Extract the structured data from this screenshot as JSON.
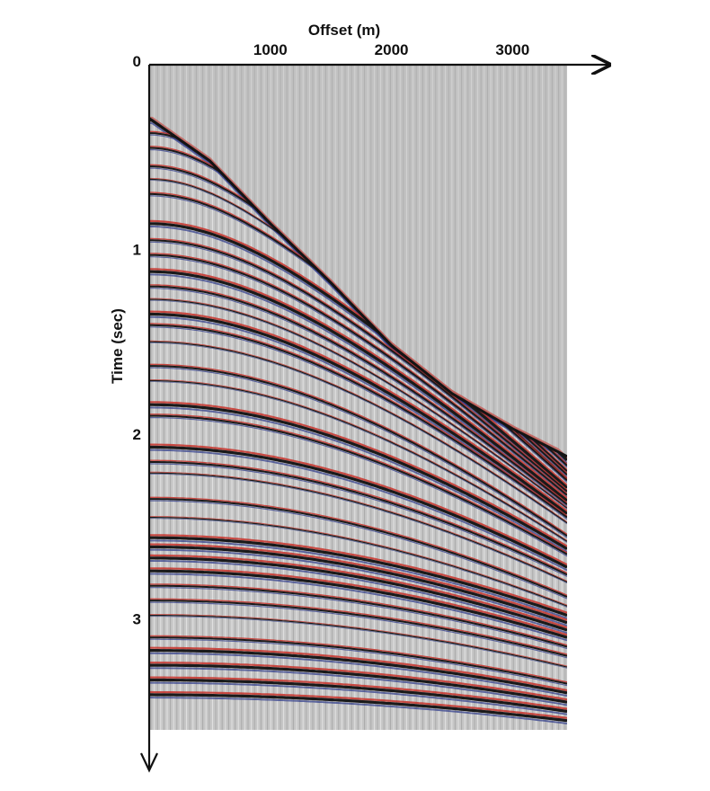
{
  "chart_data": {
    "type": "other",
    "subtype": "seismic-shot-gather",
    "xlabel": "Offset (m)",
    "ylabel": "Time (sec)",
    "x_ticks": [
      1000,
      2000,
      3000
    ],
    "y_ticks": [
      0,
      1,
      2,
      3
    ],
    "x_range": [
      0,
      3450
    ],
    "y_range": [
      0,
      3.6
    ],
    "y_axis_direction": "down",
    "x_axis_position": "top",
    "colors": {
      "background_trace": "#c6c6c6",
      "peak": "#1a1a1a",
      "positive": "#c8322a",
      "negative": "#34408c"
    },
    "first_break": [
      {
        "offset": 0,
        "time": 0.29
      },
      {
        "offset": 500,
        "time": 0.52
      },
      {
        "offset": 1000,
        "time": 0.86
      },
      {
        "offset": 1500,
        "time": 1.18
      },
      {
        "offset": 2000,
        "time": 1.52
      },
      {
        "offset": 2500,
        "time": 1.78
      },
      {
        "offset": 3000,
        "time": 1.97
      },
      {
        "offset": 3450,
        "time": 2.12
      }
    ],
    "reflections": [
      {
        "t0": 0.3,
        "t_far": 2.14,
        "strength": "strong"
      },
      {
        "t0": 0.37,
        "t_far": 2.17,
        "strength": "medium"
      },
      {
        "t0": 0.45,
        "t_far": 2.2,
        "strength": "medium"
      },
      {
        "t0": 0.55,
        "t_far": 2.22,
        "strength": "medium"
      },
      {
        "t0": 0.62,
        "t_far": 2.24,
        "strength": "weak"
      },
      {
        "t0": 0.7,
        "t_far": 2.25,
        "strength": "medium"
      },
      {
        "t0": 0.86,
        "t_far": 2.29,
        "strength": "strong"
      },
      {
        "t0": 0.95,
        "t_far": 2.31,
        "strength": "medium"
      },
      {
        "t0": 1.03,
        "t_far": 2.33,
        "strength": "medium"
      },
      {
        "t0": 1.12,
        "t_far": 2.36,
        "strength": "strong"
      },
      {
        "t0": 1.2,
        "t_far": 2.38,
        "strength": "medium"
      },
      {
        "t0": 1.27,
        "t_far": 2.4,
        "strength": "weak"
      },
      {
        "t0": 1.35,
        "t_far": 2.43,
        "strength": "strong"
      },
      {
        "t0": 1.41,
        "t_far": 2.45,
        "strength": "medium"
      },
      {
        "t0": 1.5,
        "t_far": 2.48,
        "strength": "weak"
      },
      {
        "t0": 1.63,
        "t_far": 2.55,
        "strength": "medium"
      },
      {
        "t0": 1.71,
        "t_far": 2.58,
        "strength": "weak"
      },
      {
        "t0": 1.84,
        "t_far": 2.62,
        "strength": "strong"
      },
      {
        "t0": 1.9,
        "t_far": 2.65,
        "strength": "medium"
      },
      {
        "t0": 2.07,
        "t_far": 2.72,
        "strength": "strong"
      },
      {
        "t0": 2.15,
        "t_far": 2.76,
        "strength": "medium"
      },
      {
        "t0": 2.21,
        "t_far": 2.8,
        "strength": "weak"
      },
      {
        "t0": 2.35,
        "t_far": 2.88,
        "strength": "medium"
      },
      {
        "t0": 2.45,
        "t_far": 2.93,
        "strength": "weak"
      },
      {
        "t0": 2.56,
        "t_far": 2.98,
        "strength": "strong"
      },
      {
        "t0": 2.61,
        "t_far": 3.02,
        "strength": "strong"
      },
      {
        "t0": 2.67,
        "t_far": 3.06,
        "strength": "strong"
      },
      {
        "t0": 2.74,
        "t_far": 3.1,
        "strength": "strong"
      },
      {
        "t0": 2.82,
        "t_far": 3.15,
        "strength": "medium"
      },
      {
        "t0": 2.9,
        "t_far": 3.2,
        "strength": "medium"
      },
      {
        "t0": 2.98,
        "t_far": 3.26,
        "strength": "weak"
      },
      {
        "t0": 3.1,
        "t_far": 3.35,
        "strength": "medium"
      },
      {
        "t0": 3.17,
        "t_far": 3.4,
        "strength": "strong"
      },
      {
        "t0": 3.25,
        "t_far": 3.45,
        "strength": "strong"
      },
      {
        "t0": 3.33,
        "t_far": 3.5,
        "strength": "strong"
      },
      {
        "t0": 3.41,
        "t_far": 3.55,
        "strength": "strong"
      }
    ],
    "grid": false,
    "legend": "none"
  }
}
